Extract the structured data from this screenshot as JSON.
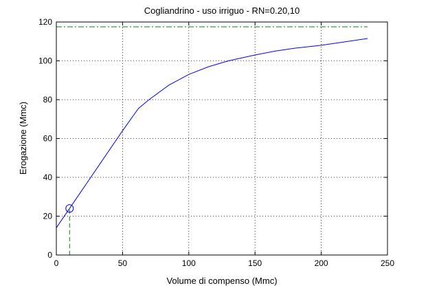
{
  "chart_data": {
    "type": "line",
    "title": "Cogliandrino  -  uso irriguo  -   RN=0.20,10",
    "xlabel": "Volume di compenso (Mmc)",
    "ylabel": "Erogazione (Mmc)",
    "xlim": [
      0,
      250
    ],
    "ylim": [
      0,
      120
    ],
    "x_ticks": [
      0,
      50,
      100,
      150,
      200,
      250
    ],
    "y_ticks": [
      0,
      20,
      40,
      60,
      80,
      100,
      120
    ],
    "grid": true,
    "series": [
      {
        "color": "#0000ff",
        "style": "solid",
        "x": [
          0,
          10,
          20,
          30,
          40,
          50,
          62,
          70,
          85,
          100,
          115,
          130,
          150,
          165,
          180,
          200,
          220,
          235
        ],
        "y": [
          14,
          24,
          34,
          44,
          54,
          64,
          75.5,
          80,
          87.5,
          93,
          97,
          100,
          103,
          105,
          106.5,
          108,
          110,
          111.5
        ]
      },
      {
        "color": "#008000",
        "style": "dashdot",
        "x": [
          0,
          235
        ],
        "y": [
          117.5,
          117.5
        ]
      },
      {
        "color": "#008000",
        "style": "dashed",
        "x": [
          10,
          10
        ],
        "y": [
          0,
          24
        ]
      }
    ],
    "markers": [
      {
        "shape": "circle",
        "color": "#0000ff",
        "x": 10,
        "y": 24
      }
    ]
  }
}
